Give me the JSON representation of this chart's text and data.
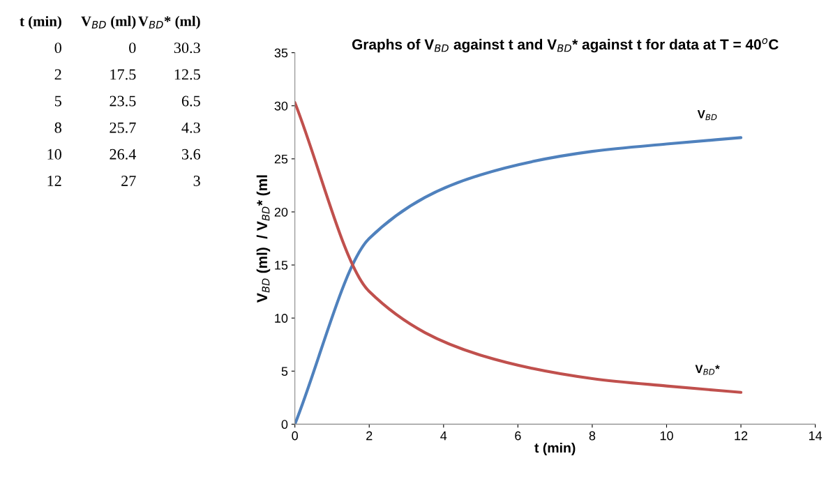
{
  "chart_data": [
    {
      "type": "other",
      "annotations": [
        "t (min)",
        "V$_{BD}$ (ml)",
        "V$_{BD}$* (ml)",
        "0",
        "0",
        "30.3",
        "2",
        "17.5",
        "12.5",
        "5",
        "23.5",
        "6.5",
        "8",
        "25.7",
        "4.3",
        "10",
        "26.4",
        "3.6",
        "12",
        "27",
        "3"
      ]
    },
    {
      "type": "line",
      "title": "Graphs of V$_{BD}$ against t and V$_{BD}$* against t for data at T = 40$^{o}$C",
      "xlabel": "t (min)",
      "ylabel": "V$_{BD}$ (ml)  / V$_{BD}$* (ml",
      "x": [
        0,
        2,
        5,
        8,
        10,
        12
      ],
      "series": [
        {
          "name": "V$_{BD}$",
          "color": "#4f81bd",
          "values": [
            0,
            17.5,
            23.5,
            25.7,
            26.4,
            27
          ]
        },
        {
          "name": "V$_{BD}$*",
          "color": "#c0504d",
          "values": [
            30.3,
            12.5,
            6.5,
            4.3,
            3.6,
            3
          ]
        }
      ],
      "xlim": [
        0,
        14
      ],
      "xticks": [
        0,
        2,
        4,
        6,
        8,
        10,
        12,
        14
      ],
      "ylim": [
        0,
        35
      ],
      "yticks": [
        0,
        5,
        10,
        15,
        20,
        25,
        30,
        35
      ],
      "grid": false,
      "legend": false,
      "marker": "none",
      "line_style": "solid"
    }
  ]
}
